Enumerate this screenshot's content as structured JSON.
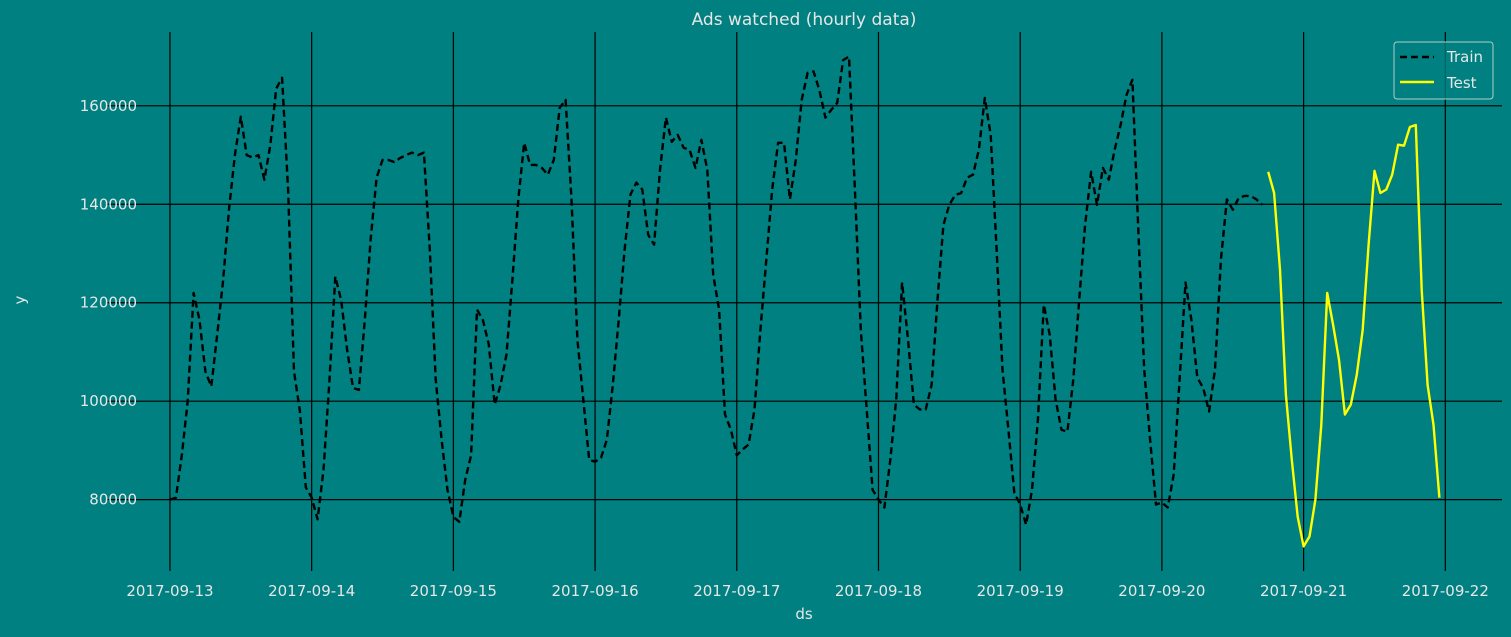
{
  "chart_data": {
    "type": "line",
    "title": "Ads watched (hourly data)",
    "xlabel": "ds",
    "ylabel": "y",
    "xlim": [
      "2017-09-12 13:10",
      "2017-09-22 09:36"
    ],
    "ylim": [
      65500,
      175000
    ],
    "x_ticks": [
      "2017-09-13",
      "2017-09-14",
      "2017-09-15",
      "2017-09-16",
      "2017-09-17",
      "2017-09-18",
      "2017-09-19",
      "2017-09-20",
      "2017-09-21",
      "2017-09-22"
    ],
    "y_ticks": [
      80000,
      100000,
      120000,
      140000,
      160000
    ],
    "grid": true,
    "legend_placement": "top-right",
    "background_color": "#008080",
    "series": [
      {
        "name": "Train",
        "color": "#000000",
        "style": "dashed",
        "start": "2017-09-13 00:00",
        "freq": "hourly",
        "values": [
          80000,
          80400,
          89000,
          100000,
          122000,
          116500,
          106000,
          103000,
          113500,
          124500,
          139000,
          150000,
          157800,
          150000,
          149500,
          150000,
          145000,
          152000,
          163500,
          165700,
          143000,
          106000,
          98000,
          82500,
          80400,
          76000,
          86000,
          104000,
          125300,
          120500,
          110500,
          102700,
          102300,
          116500,
          133000,
          145400,
          149000,
          149000,
          148600,
          149400,
          150000,
          150500,
          150000,
          150500,
          130800,
          104400,
          92200,
          82000,
          76500,
          75500,
          84000,
          89000,
          118600,
          116500,
          111500,
          99300,
          103300,
          109500,
          124700,
          141000,
          152500,
          148000,
          148000,
          147400,
          146000,
          149000,
          159600,
          161200,
          141000,
          112500,
          100300,
          88100,
          87700,
          88500,
          92200,
          103300,
          116500,
          130800,
          142000,
          144400,
          143000,
          133800,
          131800,
          147000,
          157600,
          152700,
          154100,
          151500,
          151000,
          147400,
          153100,
          147000,
          125700,
          118600,
          97300,
          94200,
          89000,
          90200,
          91200,
          98300,
          114500,
          128700,
          143000,
          152500,
          152500,
          141000,
          149000,
          161200,
          166700,
          167000,
          163200,
          157600,
          159200,
          160600,
          169300,
          170000,
          143000,
          114500,
          98300,
          82000,
          80000,
          78400,
          88100,
          100300,
          124100,
          112500,
          99300,
          98300,
          98300,
          103300,
          120600,
          135800,
          139900,
          141900,
          142300,
          145400,
          146000,
          151100,
          161600,
          154100,
          130800,
          106400,
          94200,
          81400,
          79000,
          74900,
          82000,
          96200,
          119600,
          113500,
          100300,
          94200,
          93800,
          104400,
          120600,
          135800,
          146600,
          139900,
          147400,
          145000,
          151100,
          156100,
          162200,
          165300,
          134800,
          106400,
          92200,
          79000,
          79400,
          78400,
          85100,
          104400,
          124100,
          116500,
          104800,
          102700,
          97900,
          106400,
          128700,
          141000,
          138900,
          141300,
          141700,
          141700,
          141000,
          139900
        ]
      },
      {
        "name": "Test",
        "color": "#ffff00",
        "style": "solid",
        "start": "2017-09-20 18:00",
        "freq": "hourly",
        "values": [
          146600,
          142300,
          126700,
          101300,
          88100,
          76500,
          70500,
          72500,
          80000,
          95200,
          122000,
          115500,
          108400,
          97300,
          99300,
          105400,
          114500,
          131800,
          146800,
          142300,
          143000,
          146000,
          152100,
          151900,
          155700,
          156100,
          122600,
          103300,
          95200,
          80400
        ]
      }
    ]
  }
}
